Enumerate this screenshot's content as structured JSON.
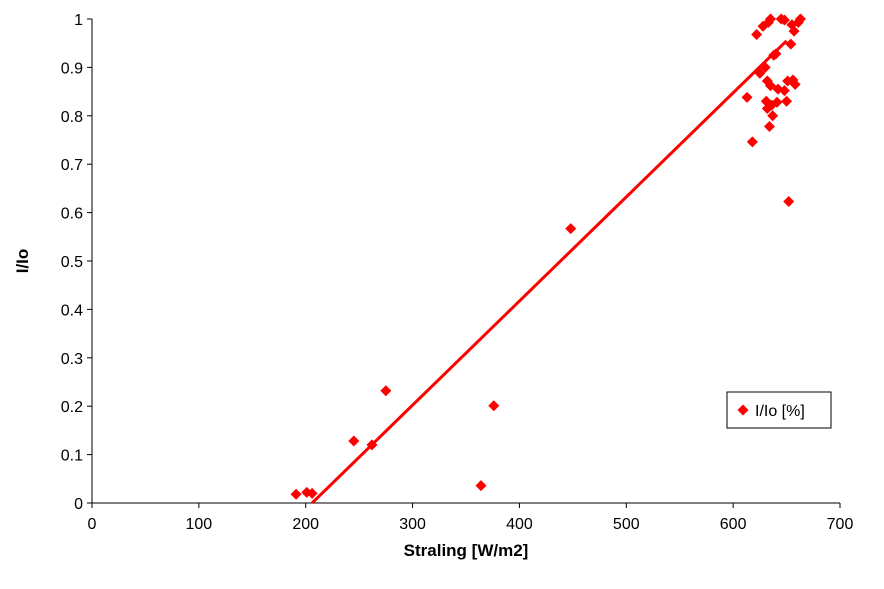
{
  "chart_data": {
    "type": "scatter",
    "title": "",
    "xlabel": "Straling [W/m2]",
    "ylabel": "I/Io",
    "xlim": [
      0,
      700
    ],
    "ylim": [
      0,
      1
    ],
    "xticks": [
      "0",
      "100",
      "200",
      "300",
      "400",
      "500",
      "600",
      "700"
    ],
    "yticks": [
      "0",
      "0.1",
      "0.2",
      "0.3",
      "0.4",
      "0.5",
      "0.6",
      "0.7",
      "0.8",
      "0.9",
      "1"
    ],
    "grid": false,
    "legend_position": "right",
    "series": [
      {
        "name": "I/Io [%]",
        "color": "#ff0000",
        "marker": "diamond",
        "points": [
          [
            191,
            0.018
          ],
          [
            201,
            0.022
          ],
          [
            206,
            0.02
          ],
          [
            245,
            0.128
          ],
          [
            262,
            0.12
          ],
          [
            275,
            0.232
          ],
          [
            364,
            0.036
          ],
          [
            376,
            0.201
          ],
          [
            448,
            0.567
          ],
          [
            613,
            0.838
          ],
          [
            618,
            0.746
          ],
          [
            622,
            0.968
          ],
          [
            625,
            0.888
          ],
          [
            628,
            0.985
          ],
          [
            630,
            0.9
          ],
          [
            631,
            0.83
          ],
          [
            632,
            0.872
          ],
          [
            632,
            0.815
          ],
          [
            633,
            0.993
          ],
          [
            634,
            0.778
          ],
          [
            635,
            1.0
          ],
          [
            635,
            0.862
          ],
          [
            636,
            0.822
          ],
          [
            637,
            0.8
          ],
          [
            638,
            0.925
          ],
          [
            640,
            0.928
          ],
          [
            641,
            0.828
          ],
          [
            642,
            0.855
          ],
          [
            645,
            1.0
          ],
          [
            648,
            0.998
          ],
          [
            648,
            0.852
          ],
          [
            650,
            0.83
          ],
          [
            651,
            0.872
          ],
          [
            652,
            0.623
          ],
          [
            654,
            0.948
          ],
          [
            655,
            0.988
          ],
          [
            656,
            0.874
          ],
          [
            657,
            0.975
          ],
          [
            658,
            0.865
          ],
          [
            661,
            0.993
          ],
          [
            663,
            1.0
          ]
        ]
      }
    ],
    "trendline": {
      "color": "#ff0000",
      "points": [
        [
          206,
          0.0
        ],
        [
          650,
          0.955
        ]
      ]
    }
  }
}
